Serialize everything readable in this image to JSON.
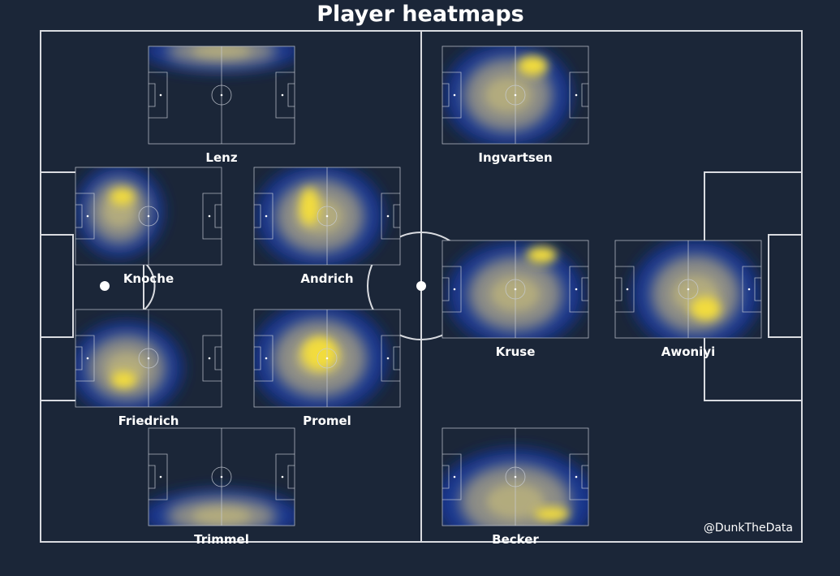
{
  "title": "Player heatmaps",
  "players": [
    "Lenz",
    "Ingvartsen",
    "Knoche",
    "Andrich",
    "Kruse",
    "Awoniyi",
    "Friedrich",
    "Promel",
    "Trimmel",
    "Becker"
  ],
  "credit": "@DunkTheData"
}
